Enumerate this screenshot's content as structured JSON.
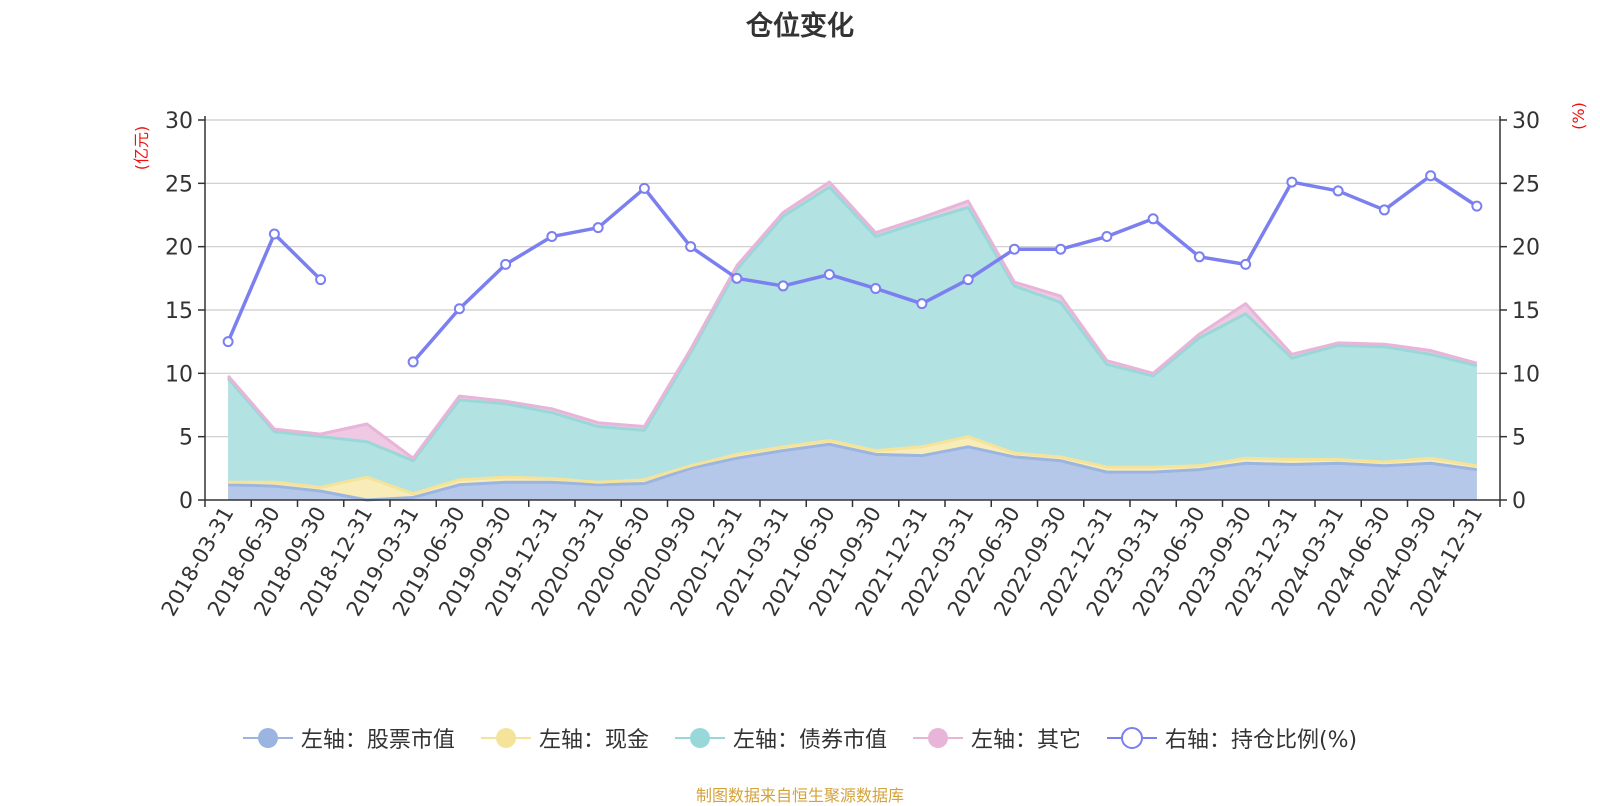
{
  "chart_data": {
    "type": "area",
    "title": "仓位变化",
    "left_axis_label": "(亿元)",
    "right_axis_label": "(%)",
    "ylim": [
      0,
      30
    ],
    "yticks": [
      0,
      5,
      10,
      15,
      20,
      25,
      30
    ],
    "categories": [
      "2018-03-31",
      "2018-06-30",
      "2018-09-30",
      "2018-12-31",
      "2019-03-31",
      "2019-06-30",
      "2019-09-30",
      "2019-12-31",
      "2020-03-31",
      "2020-06-30",
      "2020-09-30",
      "2020-12-31",
      "2021-03-31",
      "2021-06-30",
      "2021-09-30",
      "2021-12-31",
      "2022-03-31",
      "2022-06-30",
      "2022-09-30",
      "2022-12-31",
      "2023-03-31",
      "2023-06-30",
      "2023-09-30",
      "2023-12-31",
      "2024-03-31",
      "2024-06-30",
      "2024-09-30",
      "2024-12-31"
    ],
    "series": [
      {
        "name": "左轴：股票市值",
        "axis": "left",
        "color": "#9bb5e0",
        "values": [
          1.2,
          1.1,
          0.7,
          null,
          0.2,
          1.2,
          1.4,
          1.4,
          1.2,
          1.3,
          2.5,
          3.3,
          3.9,
          4.4,
          3.6,
          3.5,
          4.2,
          3.4,
          3.1,
          2.2,
          2.2,
          2.4,
          2.9,
          2.8,
          2.9,
          2.7,
          2.9,
          2.4
        ]
      },
      {
        "name": "左轴：现金",
        "axis": "left",
        "color": "#f5e39a",
        "values": [
          0.2,
          0.3,
          0.3,
          1.8,
          0.3,
          0.4,
          0.4,
          0.3,
          0.2,
          0.3,
          0.2,
          0.3,
          0.3,
          0.3,
          0.3,
          0.7,
          0.8,
          0.3,
          0.3,
          0.4,
          0.4,
          0.3,
          0.4,
          0.4,
          0.3,
          0.3,
          0.4,
          0.3
        ]
      },
      {
        "name": "左轴：债券市值",
        "axis": "left",
        "color": "#99d8d8",
        "values": [
          8.2,
          4.0,
          4.0,
          2.8,
          2.6,
          6.3,
          5.8,
          5.2,
          4.4,
          3.9,
          8.9,
          14.6,
          18.2,
          20.0,
          16.9,
          17.8,
          18.1,
          13.2,
          12.2,
          8.1,
          7.2,
          10.1,
          11.4,
          8.0,
          9.0,
          9.1,
          8.2,
          7.9
        ]
      },
      {
        "name": "左轴：其它",
        "axis": "left",
        "color": "#e8b4d8",
        "values": [
          0.2,
          0.2,
          0.2,
          1.4,
          0.2,
          0.3,
          0.2,
          0.3,
          0.3,
          0.3,
          0.3,
          0.3,
          0.3,
          0.4,
          0.3,
          0.3,
          0.5,
          0.3,
          0.5,
          0.3,
          0.2,
          0.3,
          0.8,
          0.3,
          0.2,
          0.2,
          0.3,
          0.2
        ]
      },
      {
        "name": "右轴：持仓比例(%)",
        "axis": "right",
        "color": "#7b7ff0",
        "values": [
          12.5,
          21.0,
          17.4,
          null,
          10.9,
          15.1,
          18.6,
          20.8,
          21.5,
          24.6,
          20.0,
          17.5,
          16.9,
          17.8,
          16.7,
          15.5,
          17.4,
          19.8,
          19.8,
          20.8,
          22.2,
          19.2,
          18.6,
          25.1,
          24.4,
          22.9,
          25.6,
          23.2
        ]
      }
    ]
  },
  "legend": {
    "stock": "左轴：股票市值",
    "cash": "左轴：现金",
    "bond": "左轴：债券市值",
    "other": "左轴：其它",
    "ratio": "右轴：持仓比例(%)"
  },
  "colors": {
    "stock_fill": "#b6c8ea",
    "stock_line": "#9bb5e0",
    "cash_fill": "#f8ecb8",
    "cash_line": "#f5e39a",
    "bond_fill": "#b3e2e2",
    "bond_line": "#99d8d8",
    "other_fill": "#efc9e3",
    "other_line": "#e8b4d8",
    "ratio_line": "#7b7ff0",
    "axis_label": "#ee1111",
    "source": "#d4a23a"
  },
  "source": "制图数据来自恒生聚源数据库"
}
